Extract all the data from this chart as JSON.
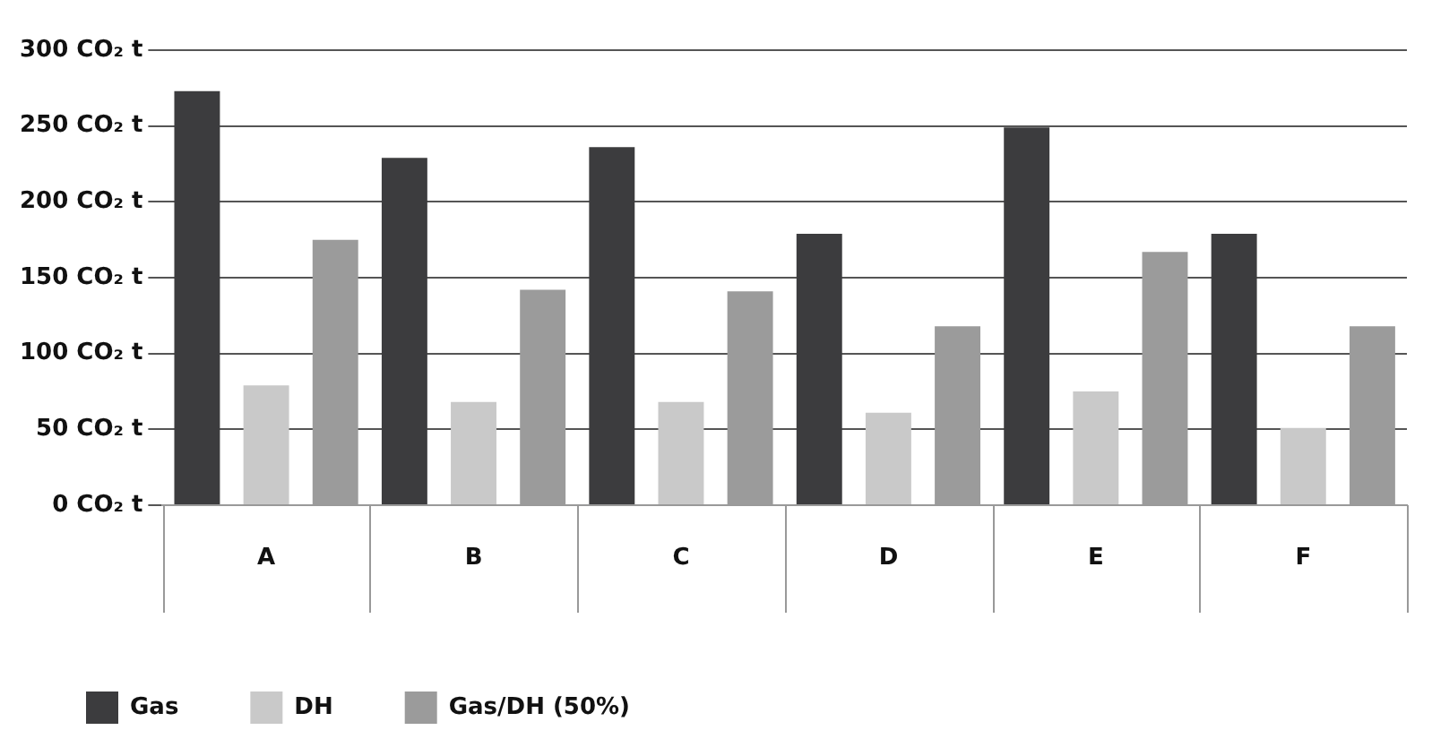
{
  "chart_data": {
    "type": "bar",
    "categories": [
      "A",
      "B",
      "C",
      "D",
      "E",
      "F"
    ],
    "series": [
      {
        "name": "Gas",
        "color": "#3c3c3e",
        "values": [
          273,
          229,
          236,
          179,
          249,
          179
        ]
      },
      {
        "name": "DH",
        "color": "#c9c9c9",
        "values": [
          79,
          68,
          68,
          61,
          75,
          51
        ]
      },
      {
        "name": "Gas/DH (50%)",
        "color": "#9b9b9b",
        "values": [
          175,
          142,
          141,
          118,
          167,
          118
        ]
      }
    ],
    "ylim": [
      0,
      300
    ],
    "yticks": [
      {
        "value": 0,
        "label": "0 CO₂ t"
      },
      {
        "value": 50,
        "label": "50 CO₂ t"
      },
      {
        "value": 100,
        "label": "100 CO₂ t"
      },
      {
        "value": 150,
        "label": "150 CO₂ t"
      },
      {
        "value": 200,
        "label": "200 CO₂ t"
      },
      {
        "value": 250,
        "label": "250 CO₂ t"
      },
      {
        "value": 300,
        "label": "300 CO₂ t"
      }
    ],
    "grid": "y",
    "legend": "bottom"
  }
}
